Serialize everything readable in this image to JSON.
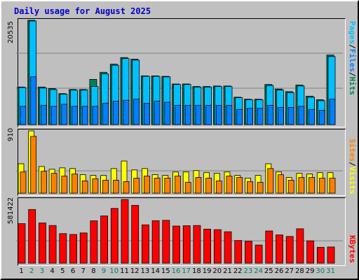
{
  "title": "Daily usage for August 2025",
  "colors": {
    "hits": "#00805c",
    "files": "#0080ff",
    "pages": "#00c0ff",
    "visits": "#ffff00",
    "sites": "#ff8000",
    "kbytes": "#ff0000",
    "weekend_day": "#00805c",
    "weekday": "#000000"
  },
  "legend": {
    "top": {
      "pages": "Pages",
      "sep1": "/",
      "files": "Files",
      "sep2": "/",
      "hits": "Hits"
    },
    "middle": {
      "sites": "Sites",
      "sep": "/",
      "visits": "Visits"
    },
    "bottom": {
      "kbytes": "KBytes"
    }
  },
  "max_labels": {
    "hits": "20535",
    "visits": "910",
    "kbytes": "581422"
  },
  "chart_data": {
    "type": "bar",
    "categories": [
      "1",
      "2",
      "3",
      "4",
      "5",
      "6",
      "7",
      "8",
      "9",
      "10",
      "11",
      "12",
      "13",
      "14",
      "15",
      "16",
      "17",
      "18",
      "19",
      "20",
      "21",
      "22",
      "23",
      "24",
      "25",
      "26",
      "27",
      "28",
      "29",
      "30",
      "31"
    ],
    "weekend_days": [
      "2",
      "3",
      "9",
      "10",
      "16",
      "17",
      "23",
      "24",
      "30",
      "31"
    ],
    "series": [
      {
        "name": "Hits",
        "panel": "top",
        "values": [
          7400,
          20535,
          7400,
          7100,
          6100,
          6900,
          6900,
          8900,
          10300,
          11900,
          13200,
          12900,
          9600,
          9600,
          9500,
          8000,
          8000,
          7500,
          7500,
          7600,
          7600,
          5400,
          5000,
          5000,
          7900,
          7000,
          6500,
          7800,
          5600,
          4900,
          13700
        ]
      },
      {
        "name": "Files",
        "panel": "top",
        "values": [
          7300,
          20400,
          7200,
          6900,
          6000,
          6800,
          6800,
          7500,
          10000,
          11700,
          13000,
          12700,
          9500,
          9500,
          9400,
          7900,
          7900,
          7400,
          7400,
          7500,
          7500,
          5300,
          4900,
          4900,
          7700,
          6800,
          6300,
          7600,
          5400,
          4700,
          13400
        ]
      },
      {
        "name": "Pages",
        "panel": "top",
        "values": [
          3600,
          9400,
          3800,
          3600,
          4000,
          3600,
          3600,
          3600,
          4200,
          4600,
          4800,
          5000,
          4200,
          4600,
          4400,
          3800,
          3800,
          3800,
          3800,
          3800,
          3800,
          3000,
          3200,
          3200,
          3800,
          3400,
          3400,
          3600,
          3000,
          2800,
          5000
        ]
      },
      {
        "name": "Visits",
        "panel": "middle",
        "values": [
          430,
          910,
          390,
          350,
          370,
          360,
          270,
          260,
          260,
          360,
          470,
          340,
          360,
          270,
          260,
          310,
          310,
          330,
          300,
          290,
          310,
          260,
          220,
          260,
          430,
          310,
          230,
          290,
          280,
          300,
          300
        ]
      },
      {
        "name": "Sites",
        "panel": "middle",
        "values": [
          310,
          830,
          320,
          290,
          250,
          280,
          180,
          210,
          190,
          190,
          170,
          220,
          250,
          220,
          220,
          250,
          160,
          230,
          220,
          180,
          250,
          230,
          170,
          160,
          360,
          270,
          190,
          230,
          230,
          220,
          220
        ]
      },
      {
        "name": "KBytes",
        "panel": "bottom",
        "values": [
          361000,
          490000,
          367000,
          344000,
          270000,
          262000,
          276000,
          387000,
          432000,
          500000,
          581422,
          528000,
          350000,
          388000,
          391000,
          339000,
          342000,
          344000,
          311000,
          306000,
          287000,
          207000,
          200000,
          166000,
          294000,
          258000,
          244000,
          314000,
          204000,
          145000,
          148000
        ]
      }
    ]
  }
}
